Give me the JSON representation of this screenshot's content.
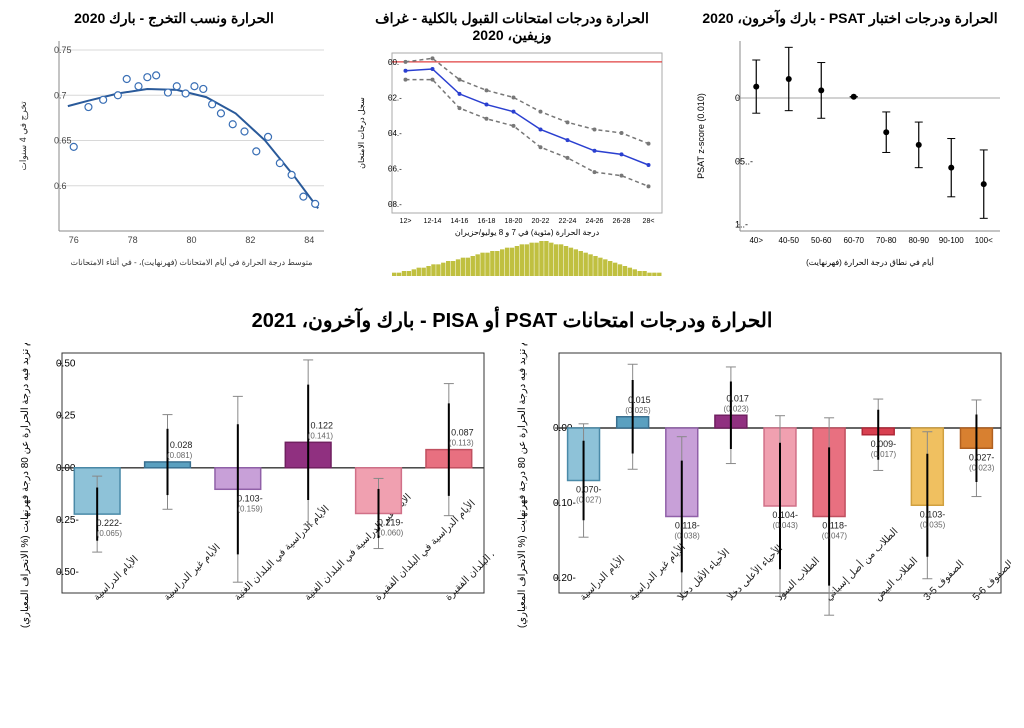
{
  "topRow": {
    "scatter": {
      "title": "الحرارة ونسب التخرج - بارك 2020",
      "xlabel": "متوسط درجة الحرارة في أيام الامتحانات (فهرنهايت)، - في أثناء الامتحانات",
      "ylabel": "تخرج في 4 سنوات",
      "xlim": [
        75.5,
        84.5
      ],
      "ylim": [
        0.55,
        0.76
      ],
      "yticks": [
        0.6,
        0.65,
        0.7,
        0.75
      ],
      "xticks": [
        76,
        78,
        80,
        82,
        84
      ],
      "grid_color": "#d8d8d8",
      "points": [
        [
          76.0,
          0.643
        ],
        [
          76.5,
          0.687
        ],
        [
          77.0,
          0.695
        ],
        [
          77.5,
          0.7
        ],
        [
          77.8,
          0.718
        ],
        [
          78.2,
          0.71
        ],
        [
          78.5,
          0.72
        ],
        [
          78.8,
          0.722
        ],
        [
          79.2,
          0.703
        ],
        [
          79.5,
          0.71
        ],
        [
          79.8,
          0.702
        ],
        [
          80.1,
          0.71
        ],
        [
          80.4,
          0.707
        ],
        [
          80.7,
          0.69
        ],
        [
          81.0,
          0.68
        ],
        [
          81.4,
          0.668
        ],
        [
          81.8,
          0.66
        ],
        [
          82.2,
          0.638
        ],
        [
          82.6,
          0.654
        ],
        [
          83.0,
          0.625
        ],
        [
          83.4,
          0.612
        ],
        [
          83.8,
          0.588
        ],
        [
          84.2,
          0.58
        ]
      ],
      "curve": [
        [
          75.8,
          0.688
        ],
        [
          76.5,
          0.694
        ],
        [
          77.5,
          0.702
        ],
        [
          78.5,
          0.707
        ],
        [
          79.5,
          0.706
        ],
        [
          80.5,
          0.698
        ],
        [
          81.5,
          0.68
        ],
        [
          82.5,
          0.65
        ],
        [
          83.5,
          0.61
        ],
        [
          84.3,
          0.575
        ]
      ],
      "marker_stroke": "#3a6fb5",
      "marker_fill": "#ffffff",
      "marker_r": 3.5,
      "curve_color": "#2a5a9a",
      "curve_width": 2
    },
    "lines": {
      "title": "الحرارة ودرجات امتحانات القبول بالكلية - غراف وزيفين، 2020",
      "xlabel": "درجة الحرارة (مئوية) في 7 و 8 يوليو/حزيران",
      "ylabel": "سجل درجات الامتحان",
      "zero_line_color": "#e04040",
      "yticks": [
        -0.08,
        -0.06,
        -0.04,
        -0.02,
        0
      ],
      "xcats": [
        "<12",
        "12-14",
        "14-16",
        "16-18",
        "18-20",
        "20-22",
        "22-24",
        "24-26",
        "26-28",
        ">28"
      ],
      "main": [
        -0.005,
        -0.004,
        -0.018,
        -0.024,
        -0.028,
        -0.038,
        -0.044,
        -0.05,
        -0.052,
        -0.058
      ],
      "upper": [
        0.0,
        0.002,
        -0.01,
        -0.016,
        -0.02,
        -0.028,
        -0.034,
        -0.038,
        -0.04,
        -0.046
      ],
      "lower": [
        -0.01,
        -0.01,
        -0.026,
        -0.032,
        -0.036,
        -0.048,
        -0.054,
        -0.062,
        -0.064,
        -0.07
      ],
      "main_color": "#2a3fd0",
      "ci_color": "#777777",
      "hist_color": "#c0c040",
      "hist": [
        2,
        2,
        3,
        3,
        4,
        5,
        5,
        6,
        7,
        7,
        8,
        9,
        9,
        10,
        11,
        11,
        12,
        13,
        14,
        14,
        15,
        15,
        16,
        17,
        17,
        18,
        19,
        19,
        20,
        20,
        21,
        21,
        20,
        19,
        19,
        18,
        17,
        16,
        15,
        14,
        13,
        12,
        11,
        10,
        9,
        8,
        7,
        6,
        5,
        4,
        3,
        3,
        2,
        2,
        2
      ]
    },
    "psat": {
      "title": "الحرارة ودرجات اختبار PSAT - بارك وآخرون، 2020",
      "xlabel": "أيام في نطاق درجة الحرارة (فهرنهايت)",
      "ylabel": "PSAT z-score (0.010)",
      "xcats": [
        "<40",
        "40-50",
        "50-60",
        "60-70",
        "70-80",
        "80-90",
        "90-100",
        ">100"
      ],
      "yticks": [
        -0.1,
        -0.05,
        0
      ],
      "est": [
        0.009,
        0.015,
        0.006,
        0.001,
        -0.027,
        -0.037,
        -0.055,
        -0.068
      ],
      "ci_lo": [
        -0.012,
        -0.01,
        -0.016,
        0.001,
        -0.043,
        -0.055,
        -0.078,
        -0.095
      ],
      "ci_hi": [
        0.03,
        0.04,
        0.028,
        0.001,
        -0.011,
        -0.019,
        -0.032,
        -0.041
      ],
      "marker_color": "#000000",
      "marker_r": 3
    }
  },
  "bigtitle": "الحرارة ودرجات امتحانات PSAT أو PISA - بارك وآخرون، 2021",
  "bottomRow": {
    "left": {
      "ylabel": "أثر يوم تزيد فيه درجة الحرارة عن 80 درجة فهرنهايت (% الانحراف المعياري)",
      "ylim": [
        -0.6,
        0.55
      ],
      "yticks": [
        -0.5,
        -0.25,
        0,
        0.25,
        0.5
      ],
      "bars": [
        {
          "label": "الأيام الدراسية",
          "val": -0.222,
          "se": 0.065,
          "fill": "#8ec2d8",
          "stroke": "#4a8aa8"
        },
        {
          "label": "الأيام غير الدراسية",
          "val": 0.028,
          "se": 0.081,
          "fill": "#5aa0c0",
          "stroke": "#3a7090"
        },
        {
          "label": "الأيام الدراسية في البلدان الغنية",
          "val": -0.103,
          "se": 0.159,
          "fill": "#c8a0d8",
          "stroke": "#9060a8"
        },
        {
          "label": "الأيام غير الدراسية في البلدان الغنية",
          "val": 0.122,
          "se": 0.141,
          "fill": "#903080",
          "stroke": "#702060"
        },
        {
          "label": "الأيام الدراسية في البلدان الفقيرة",
          "val": -0.219,
          "se": 0.06,
          "fill": "#f0a0b0",
          "stroke": "#d07088"
        },
        {
          "label": "الأيام غير الدراسية في البلدان الفقيرة",
          "val": 0.087,
          "se": 0.113,
          "fill": "#e87080",
          "stroke": "#c05060"
        }
      ]
    },
    "right": {
      "ylabel": "أثر يوم تزيد فيه درجة الحرارة عن 80 درجة فهرنهايت (% الانحراف المعياري)",
      "ylim": [
        -0.22,
        0.1
      ],
      "yticks": [
        -0.2,
        -0.1,
        0
      ],
      "bars": [
        {
          "label": "الأيام الدراسية",
          "val": -0.07,
          "se": 0.027,
          "fill": "#8ec2d8",
          "stroke": "#4a8aa8"
        },
        {
          "label": "الأيام غير الدراسية",
          "val": 0.015,
          "se": 0.025,
          "fill": "#5aa0c0",
          "stroke": "#3a7090"
        },
        {
          "label": "الأحياء الأقل دخلا",
          "val": -0.118,
          "se": 0.038,
          "fill": "#c8a0d8",
          "stroke": "#9060a8"
        },
        {
          "label": "الأحياء الأعلى دخلا",
          "val": 0.017,
          "se": 0.023,
          "fill": "#903080",
          "stroke": "#702060"
        },
        {
          "label": "الطلاب السود",
          "val": -0.104,
          "se": 0.043,
          "fill": "#f0a0b0",
          "stroke": "#d07088"
        },
        {
          "label": "الطلاب من أصل إسباني",
          "val": -0.118,
          "se": 0.047,
          "fill": "#e87080",
          "stroke": "#c05060"
        },
        {
          "label": "الطلاب البيض",
          "val": -0.009,
          "se": 0.017,
          "fill": "#d84050",
          "stroke": "#b02838"
        },
        {
          "label": "الصفوف 5-3",
          "val": -0.103,
          "se": 0.035,
          "fill": "#f0c060",
          "stroke": "#d0a040"
        },
        {
          "label": "الصفوف 6-5",
          "val": -0.027,
          "se": 0.023,
          "fill": "#d88030",
          "stroke": "#b06020"
        }
      ]
    }
  }
}
